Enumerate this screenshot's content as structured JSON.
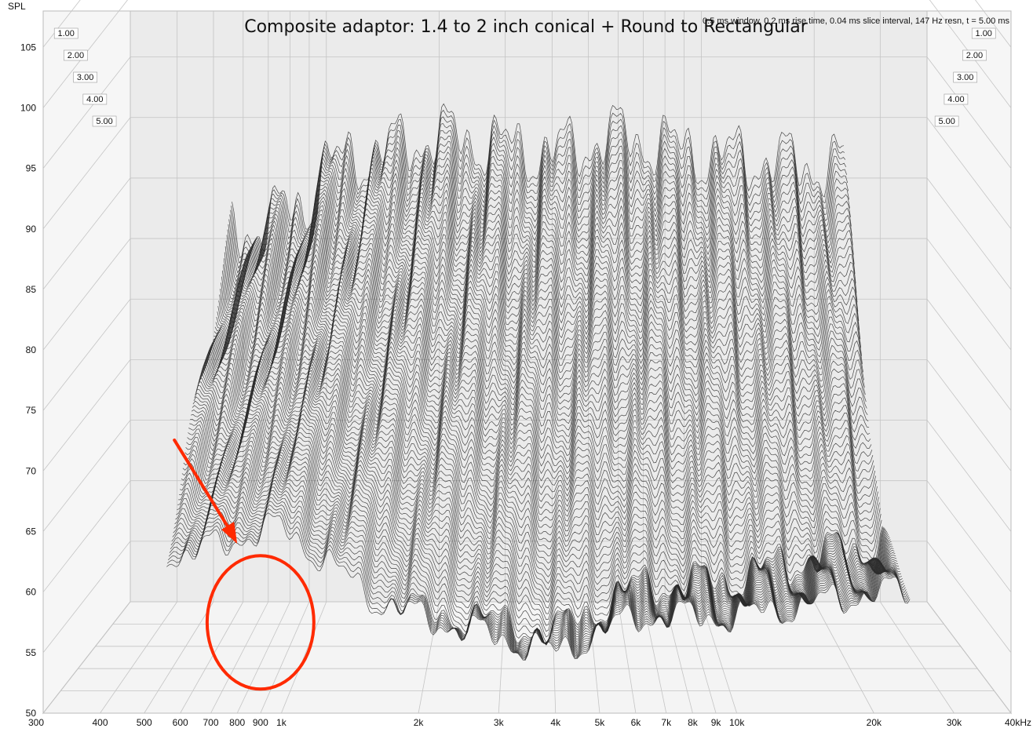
{
  "chart_data": {
    "type": "waterfall",
    "title": "Composite adaptor:  1.4 to 2 inch conical + Round to Rectangular",
    "info": "0.5 ms window, 0.2 ms rise time, 0.04 ms slice interval, 147 Hz resn, t = 5.00 ms",
    "ylabel": "SPL",
    "xlabel": "",
    "x_unit": "Hz",
    "log_x": true,
    "xlim": [
      300,
      40000
    ],
    "ylim": [
      50,
      108
    ],
    "time_range_ms": [
      0,
      5
    ],
    "x_ticks": [
      {
        "v": 300,
        "label": "300"
      },
      {
        "v": 400,
        "label": "400"
      },
      {
        "v": 500,
        "label": "500"
      },
      {
        "v": 600,
        "label": "600"
      },
      {
        "v": 700,
        "label": "700"
      },
      {
        "v": 800,
        "label": "800"
      },
      {
        "v": 900,
        "label": "900"
      },
      {
        "v": 1000,
        "label": "1k"
      },
      {
        "v": 2000,
        "label": "2k"
      },
      {
        "v": 3000,
        "label": "3k"
      },
      {
        "v": 4000,
        "label": "4k"
      },
      {
        "v": 5000,
        "label": "5k"
      },
      {
        "v": 6000,
        "label": "6k"
      },
      {
        "v": 7000,
        "label": "7k"
      },
      {
        "v": 8000,
        "label": "8k"
      },
      {
        "v": 9000,
        "label": "9k"
      },
      {
        "v": 10000,
        "label": "10k"
      },
      {
        "v": 20000,
        "label": "20k"
      },
      {
        "v": 30000,
        "label": "30k"
      },
      {
        "v": 40000,
        "label": "40kHz"
      }
    ],
    "y_ticks": [
      {
        "v": 50,
        "label": "50"
      },
      {
        "v": 55,
        "label": "55"
      },
      {
        "v": 60,
        "label": "60"
      },
      {
        "v": 65,
        "label": "65"
      },
      {
        "v": 70,
        "label": "70"
      },
      {
        "v": 75,
        "label": "75"
      },
      {
        "v": 80,
        "label": "80"
      },
      {
        "v": 85,
        "label": "85"
      },
      {
        "v": 90,
        "label": "90"
      },
      {
        "v": 95,
        "label": "95"
      },
      {
        "v": 100,
        "label": "100"
      },
      {
        "v": 105,
        "label": "105"
      }
    ],
    "time_ticks": [
      "1.00",
      "2.00",
      "3.00",
      "4.00",
      "5.00"
    ],
    "slice_envelopes": [
      {
        "f": 600,
        "top": 80.5,
        "bottom": 57.0
      },
      {
        "f": 900,
        "top": 83.0,
        "bottom": 62.0
      },
      {
        "f": 1000,
        "top": 86.0,
        "bottom": 62.5
      },
      {
        "f": 2000,
        "top": 88.5,
        "bottom": 58.0
      },
      {
        "f": 4000,
        "top": 87.0,
        "bottom": 55.0
      },
      {
        "f": 6000,
        "top": 88.5,
        "bottom": 58.0
      },
      {
        "f": 10000,
        "top": 87.0,
        "bottom": 58.0
      },
      {
        "f": 20000,
        "top": 86.0,
        "bottom": 60.0
      }
    ],
    "annotations": [
      {
        "type": "arrow",
        "target_f": 800,
        "target_spl": 64.0
      },
      {
        "type": "ellipse",
        "center_f": 900,
        "center_spl": 57.5
      }
    ],
    "colors": {
      "traces": "#2a2a2a",
      "grid": "#c4c4c4",
      "back_wall": "#ebebeb",
      "annotation": "#ff2a00"
    }
  }
}
